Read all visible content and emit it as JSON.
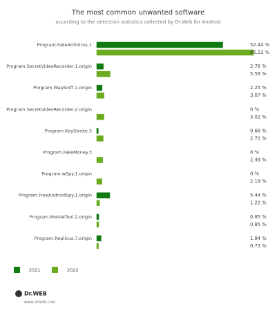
{
  "chart_data": {
    "type": "bar",
    "orientation": "horizontal",
    "title": "The most common unwanted software",
    "subtitle": "according to the detection statistics collected by Dr.Web for Android",
    "categories": [
      "Program.FakeAntiVirus.1",
      "Program.SecretVideoRecorder.1.origin",
      "Program.WapSniff.1.origin",
      "Program.SecretVideoRecorder.2.origin",
      "Program.KeyStroke.3",
      "Program.FakeMoney.3",
      "Program.wSpy.1.origin",
      "Program.FreeAndroidSpy.1.origin",
      "Program.MobileTool.2.origin",
      "Program.Replicus.7.origin"
    ],
    "series": [
      {
        "name": "2021",
        "color": "#117a11",
        "values": [
          52.44,
          2.76,
          2.25,
          0,
          0.66,
          0,
          0,
          5.44,
          0.85,
          1.84
        ],
        "value_labels": [
          "52.44 %",
          "2.76 %",
          "2.25 %",
          "0 %",
          "0.66 %",
          "0 %",
          "0 %",
          "5.44 %",
          "0.85 %",
          "1.84 %"
        ]
      },
      {
        "name": "2022",
        "color": "#6aab1f",
        "values": [
          65.22,
          5.59,
          3.07,
          3.02,
          2.72,
          2.49,
          2.19,
          1.22,
          0.85,
          0.73
        ],
        "value_labels": [
          "65.22 %",
          "5.59 %",
          "3.07 %",
          "3.02 %",
          "2.72 %",
          "2.49 %",
          "2.19 %",
          "1.22 %",
          "0.85 %",
          "0.73 %"
        ]
      }
    ],
    "legend": "bottom-left"
  },
  "footer": {
    "logo": "Dr.WEB",
    "url": "www.drweb.com"
  }
}
